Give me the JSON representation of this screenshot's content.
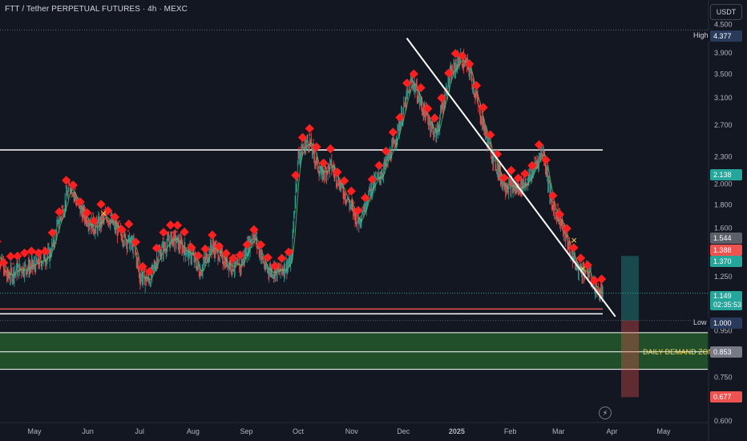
{
  "header": {
    "title": "FTT / Tether PERPETUAL FUTURES · 4h · MEXC",
    "currency": "USDT"
  },
  "annotations": {
    "zone_label": "DAILY DEMAND ZONE",
    "high_label": "High",
    "low_label": "Low"
  },
  "price_tags": {
    "high": "4.377",
    "green_upper": "2.138",
    "gray": "1.544",
    "red": "1.388",
    "green_lower": "1.370",
    "current_price": "1.149",
    "countdown": "02:35:53",
    "low": "1.000",
    "zone_mid": "0.853",
    "target_red": "0.677"
  },
  "colors": {
    "background": "#131722",
    "up": "#26a69a",
    "down": "#ef5350",
    "signal": "#ff1f1f",
    "cross": "#f7d754",
    "zone": "#2e7d32",
    "trendline": "#ffffff"
  },
  "chart_data": {
    "type": "candlestick",
    "title": "FTT / Tether PERPETUAL FUTURES · 4h · MEXC",
    "y_scale": "log",
    "ylim": [
      0.6,
      4.55
    ],
    "y_ticks": [
      "4.500",
      "3.900",
      "3.500",
      "3.100",
      "2.700",
      "2.300",
      "2.000",
      "1.800",
      "1.600",
      "1.250",
      "0.950",
      "0.750",
      "0.600"
    ],
    "x_ticks": [
      "May",
      "Jun",
      "Jul",
      "Aug",
      "Sep",
      "Oct",
      "Nov",
      "Dec",
      "2025",
      "Feb",
      "Mar",
      "Apr",
      "May"
    ],
    "x_tick_dates": [
      "2024-05-01",
      "2024-06-01",
      "2024-07-01",
      "2024-08-01",
      "2024-09-01",
      "2024-10-01",
      "2024-11-01",
      "2024-12-01",
      "2025-01-01",
      "2025-02-01",
      "2025-03-01",
      "2025-04-01",
      "2025-05-01"
    ],
    "price_path": [
      [
        "2024-04-08",
        1.45
      ],
      [
        "2024-04-15",
        1.25
      ],
      [
        "2024-04-22",
        1.3
      ],
      [
        "2024-05-01",
        1.32
      ],
      [
        "2024-05-10",
        1.4
      ],
      [
        "2024-05-18",
        1.78
      ],
      [
        "2024-05-22",
        2.0
      ],
      [
        "2024-05-27",
        1.76
      ],
      [
        "2024-06-05",
        1.6
      ],
      [
        "2024-06-12",
        1.7
      ],
      [
        "2024-06-20",
        1.55
      ],
      [
        "2024-06-28",
        1.45
      ],
      [
        "2024-07-01",
        1.25
      ],
      [
        "2024-07-07",
        1.23
      ],
      [
        "2024-07-12",
        1.4
      ],
      [
        "2024-07-20",
        1.52
      ],
      [
        "2024-08-01",
        1.38
      ],
      [
        "2024-08-05",
        1.28
      ],
      [
        "2024-08-12",
        1.46
      ],
      [
        "2024-08-20",
        1.35
      ],
      [
        "2024-08-28",
        1.3
      ],
      [
        "2024-09-05",
        1.55
      ],
      [
        "2024-09-12",
        1.3
      ],
      [
        "2024-09-20",
        1.28
      ],
      [
        "2024-09-27",
        1.35
      ],
      [
        "2024-10-01",
        2.3
      ],
      [
        "2024-10-07",
        2.5
      ],
      [
        "2024-10-14",
        2.1
      ],
      [
        "2024-10-20",
        2.2
      ],
      [
        "2024-10-28",
        1.9
      ],
      [
        "2024-11-05",
        1.65
      ],
      [
        "2024-11-12",
        1.95
      ],
      [
        "2024-11-18",
        2.1
      ],
      [
        "2024-11-25",
        2.4
      ],
      [
        "2024-12-01",
        2.9
      ],
      [
        "2024-12-06",
        3.4
      ],
      [
        "2024-12-12",
        2.95
      ],
      [
        "2024-12-20",
        2.55
      ],
      [
        "2024-12-28",
        3.45
      ],
      [
        "2025-01-03",
        3.8
      ],
      [
        "2025-01-08",
        3.6
      ],
      [
        "2025-01-14",
        2.9
      ],
      [
        "2025-01-20",
        2.4
      ],
      [
        "2025-01-28",
        2.0
      ],
      [
        "2025-02-05",
        1.95
      ],
      [
        "2025-02-12",
        2.05
      ],
      [
        "2025-02-20",
        2.38
      ],
      [
        "2025-02-25",
        1.8
      ],
      [
        "2025-03-01",
        1.7
      ],
      [
        "2025-03-07",
        1.45
      ],
      [
        "2025-03-12",
        1.3
      ],
      [
        "2025-03-18",
        1.28
      ],
      [
        "2025-03-24",
        1.15
      ],
      [
        "2025-03-27",
        1.149
      ]
    ],
    "levels": {
      "high": 4.377,
      "resistance": 2.38,
      "support_red": 1.06,
      "low": 1.0,
      "demand_zone": [
        0.78,
        0.94
      ],
      "zone_mid": 0.853
    },
    "trendline": [
      [
        "2024-12-03",
        4.2
      ],
      [
        "2025-04-03",
        1.02
      ]
    ],
    "position_box": {
      "entry": 1.0,
      "target": 1.388,
      "stop": 0.677
    }
  }
}
